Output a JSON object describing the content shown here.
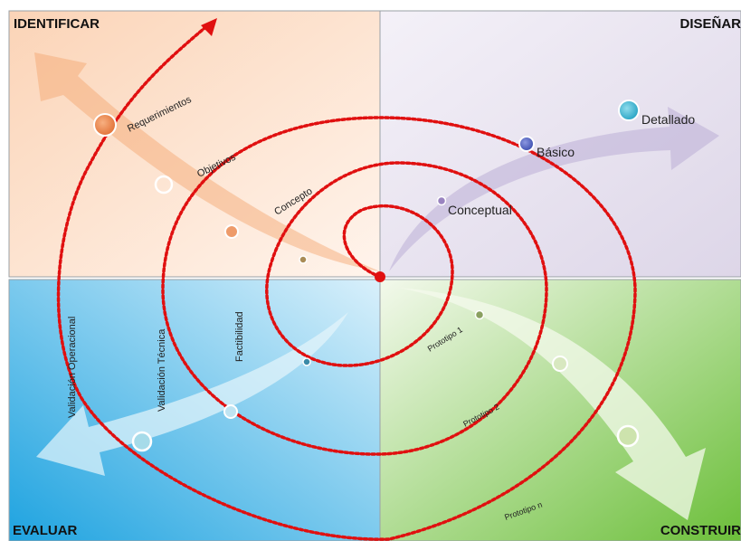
{
  "quadrants": {
    "identificar": "IDENTIFICAR",
    "disenar": "DISEÑAR",
    "evaluar": "EVALUAR",
    "construir": "CONSTRUIR"
  },
  "labels": {
    "requerimientos": "Requerimientos",
    "objetivos": "Objetivos",
    "concepto": "Concepto",
    "detallado": "Detallado",
    "basico": "Básico",
    "conceptual": "Conceptual",
    "validacion_operacional": "Validación Operacional",
    "validacion_tecnica": "Validación Técnica",
    "factibilidad": "Factibilidad",
    "prototipo_1": "Prototipo 1",
    "prototipo_2": "Prototipo 2",
    "prototipo_n": "Prototipo n"
  },
  "colors": {
    "identificar_bg": "#fde3cf",
    "disenar_bg": "#e7e2ef",
    "evaluar_bg": "#49b3e6",
    "construir_bg": "#8bc34a",
    "spiral": "#e01010",
    "identificar_dot": "#ee8a55",
    "disenar_dot": "#5566c4",
    "detallado_dot": "#4fbad3",
    "conceptual_dot": "#9a84c0"
  }
}
